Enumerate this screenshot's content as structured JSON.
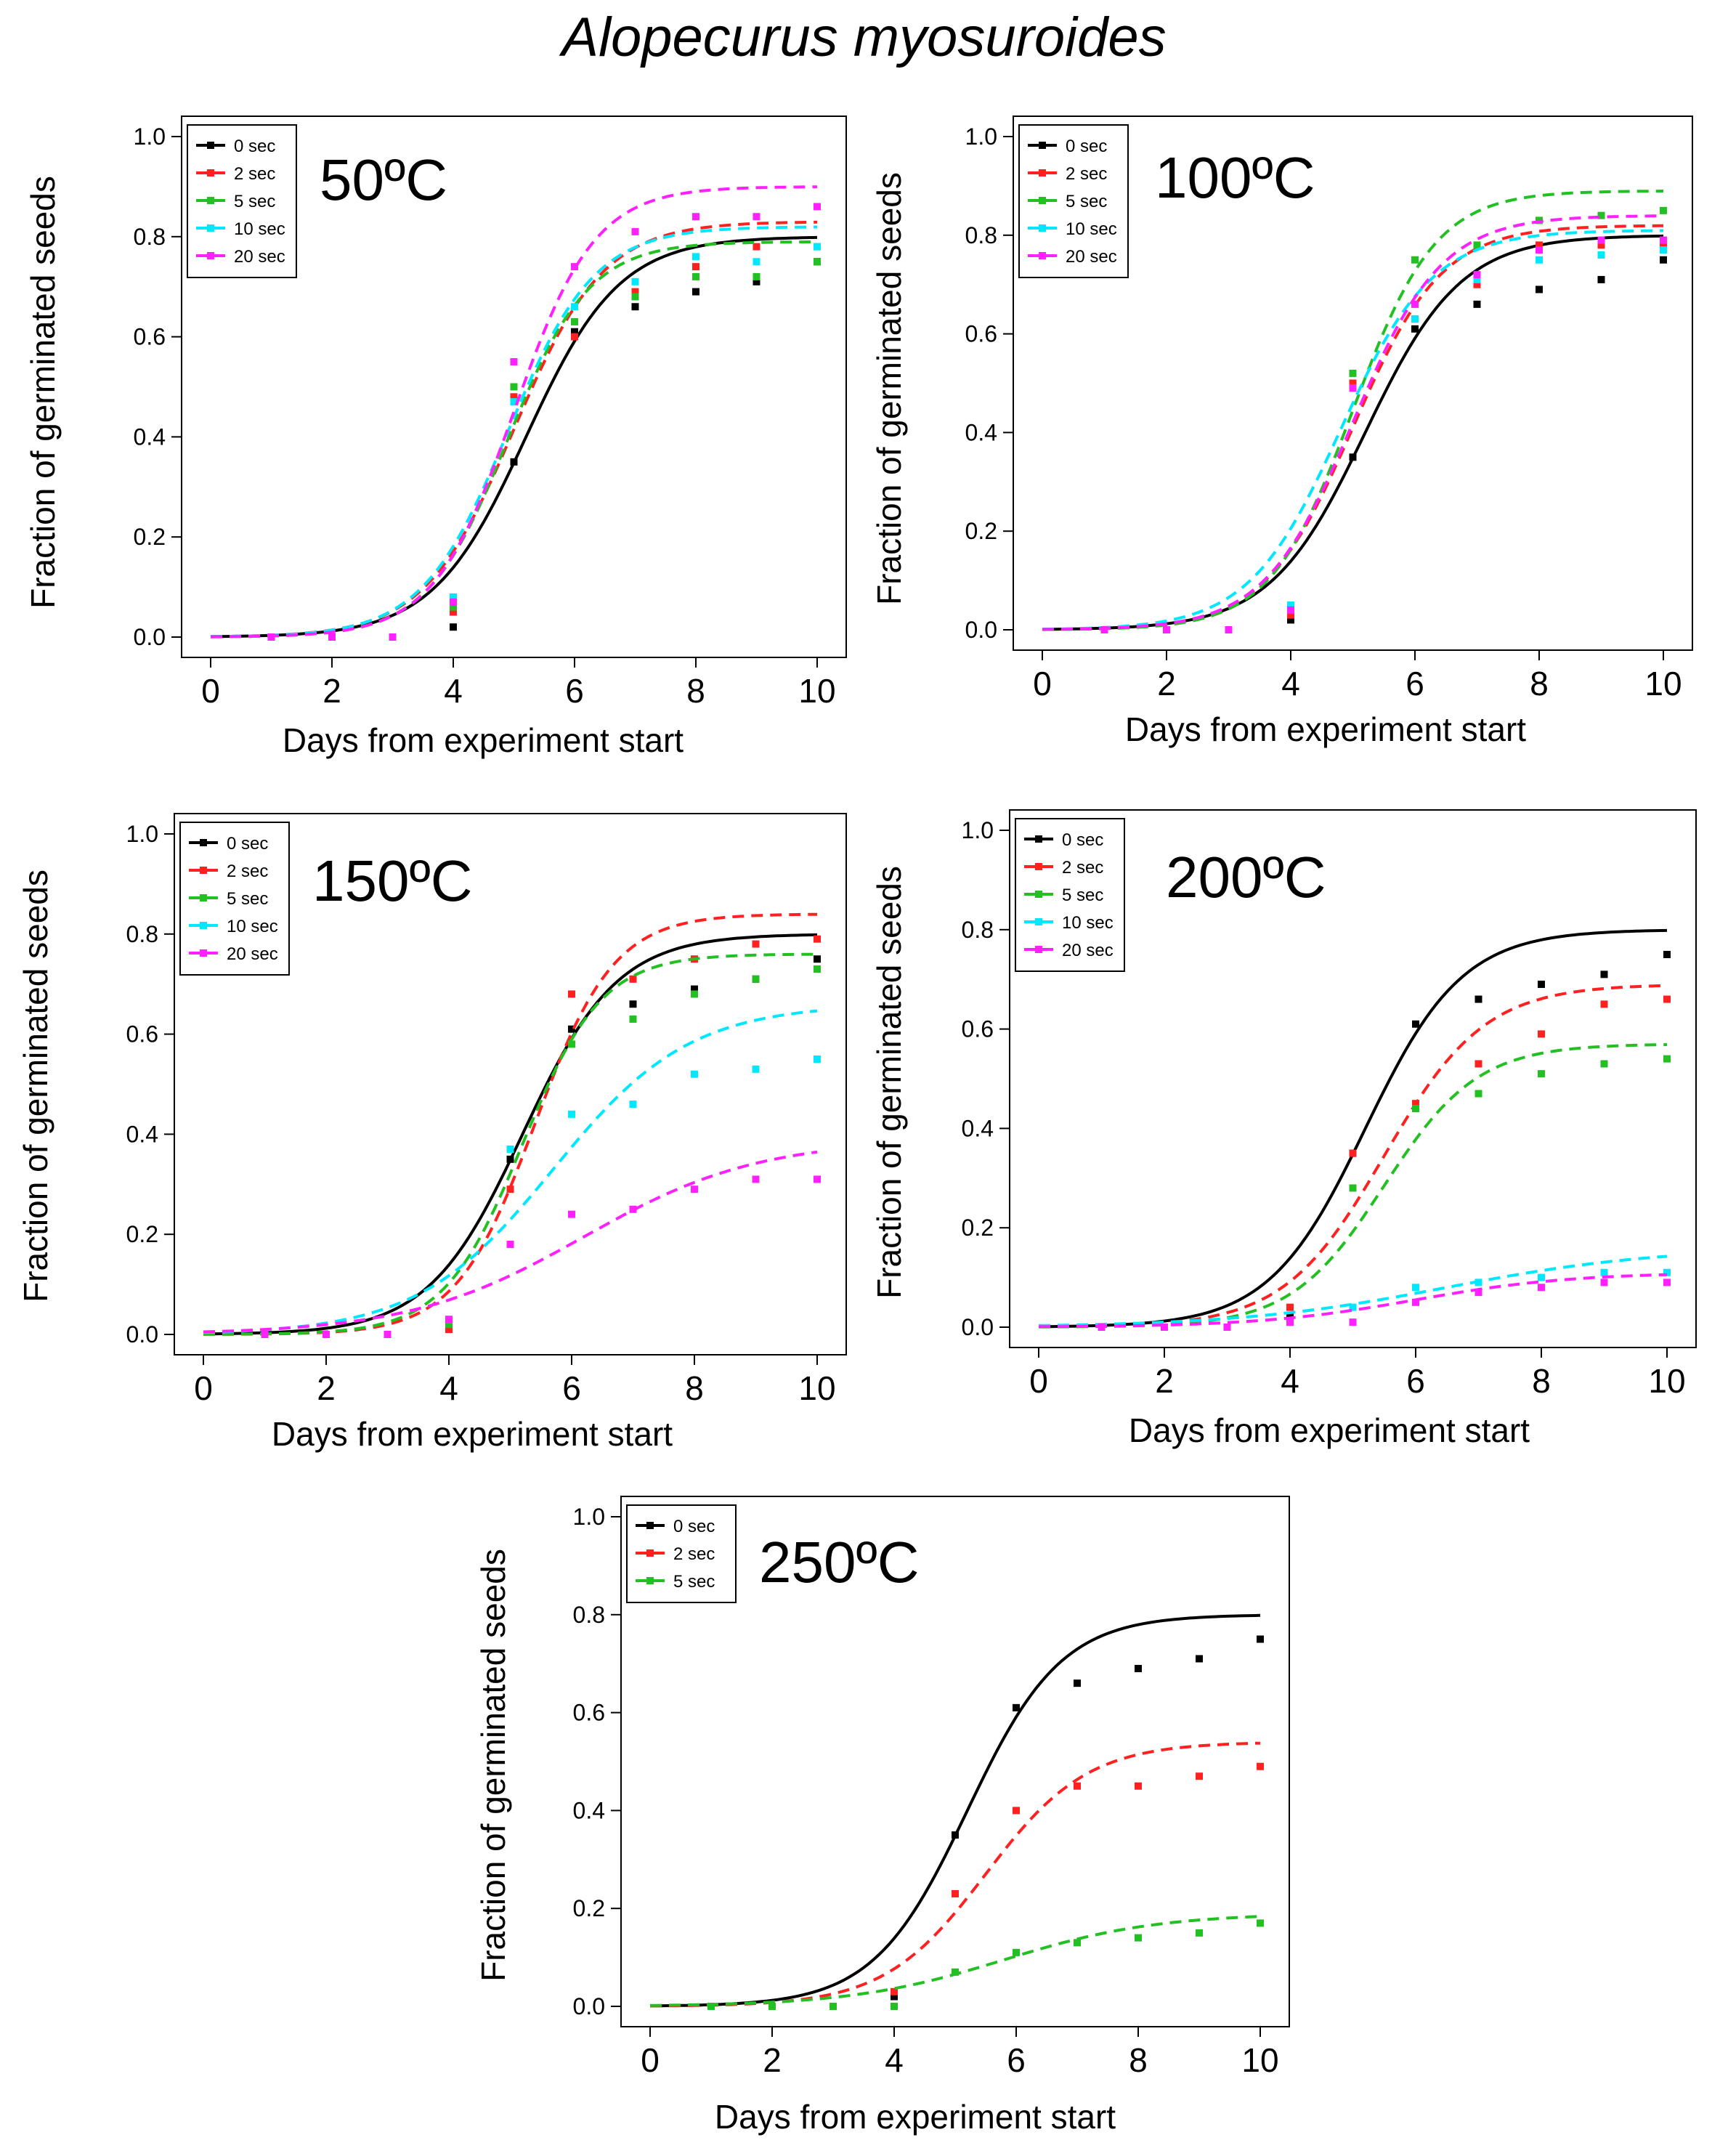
{
  "page_title": "Alopecurus myosuroides",
  "chart_data": [
    {
      "type": "line",
      "title": "50ºC",
      "xlabel": "Days from experiment start",
      "ylabel": "Fraction of germinated seeds",
      "xlim": [
        0,
        10
      ],
      "ylim": [
        0,
        1
      ],
      "xticks": [
        "0",
        "2",
        "4",
        "6",
        "8",
        "10"
      ],
      "yticks": [
        "0.0",
        "0.2",
        "0.4",
        "0.6",
        "0.8",
        "1.0"
      ],
      "x": [
        1,
        2,
        3,
        4,
        5,
        6,
        7,
        8,
        9,
        10
      ],
      "series": [
        {
          "name": "0 sec",
          "color": "#000000",
          "dash": false,
          "fit": {
            "K": 0.8,
            "r": 1.3,
            "t0": 5.2
          },
          "values": [
            0.0,
            0.0,
            0.0,
            0.02,
            0.35,
            0.61,
            0.66,
            0.69,
            0.71,
            0.75
          ]
        },
        {
          "name": "2 sec",
          "color": "#ff2020",
          "dash": true,
          "fit": {
            "K": 0.83,
            "r": 1.35,
            "t0": 5.0
          },
          "values": [
            0.0,
            0.0,
            0.0,
            0.05,
            0.48,
            0.6,
            0.69,
            0.74,
            0.78,
            0.78
          ]
        },
        {
          "name": "5 sec",
          "color": "#22c022",
          "dash": true,
          "fit": {
            "K": 0.79,
            "r": 1.5,
            "t0": 4.9
          },
          "values": [
            0.0,
            0.0,
            0.0,
            0.06,
            0.5,
            0.63,
            0.68,
            0.72,
            0.72,
            0.75
          ]
        },
        {
          "name": "10 sec",
          "color": "#00e8ff",
          "dash": true,
          "fit": {
            "K": 0.82,
            "r": 1.4,
            "t0": 4.9
          },
          "values": [
            0.0,
            0.0,
            0.0,
            0.08,
            0.47,
            0.66,
            0.71,
            0.76,
            0.75,
            0.78
          ]
        },
        {
          "name": "20 sec",
          "color": "#ff20ff",
          "dash": true,
          "fit": {
            "K": 0.9,
            "r": 1.5,
            "t0": 5.0
          },
          "values": [
            0.0,
            0.0,
            0.0,
            0.07,
            0.55,
            0.74,
            0.81,
            0.84,
            0.84,
            0.86
          ]
        }
      ]
    },
    {
      "type": "line",
      "title": "100ºC",
      "xlabel": "Days from experiment start",
      "ylabel": "Fraction of germinated seeds",
      "xlim": [
        0,
        10
      ],
      "ylim": [
        0,
        1
      ],
      "xticks": [
        "0",
        "2",
        "4",
        "6",
        "8",
        "10"
      ],
      "yticks": [
        "0.0",
        "0.2",
        "0.4",
        "0.6",
        "0.8",
        "1.0"
      ],
      "x": [
        1,
        2,
        3,
        4,
        5,
        6,
        7,
        8,
        9,
        10
      ],
      "series": [
        {
          "name": "0 sec",
          "color": "#000000",
          "dash": false,
          "fit": {
            "K": 0.8,
            "r": 1.3,
            "t0": 5.2
          },
          "values": [
            0.0,
            0.0,
            0.0,
            0.02,
            0.35,
            0.61,
            0.66,
            0.69,
            0.71,
            0.75
          ]
        },
        {
          "name": "2 sec",
          "color": "#ff2020",
          "dash": true,
          "fit": {
            "K": 0.82,
            "r": 1.4,
            "t0": 5.0
          },
          "values": [
            0.0,
            0.0,
            0.0,
            0.03,
            0.5,
            0.63,
            0.7,
            0.78,
            0.78,
            0.78
          ]
        },
        {
          "name": "5 sec",
          "color": "#22c022",
          "dash": true,
          "fit": {
            "K": 0.89,
            "r": 1.5,
            "t0": 5.0
          },
          "values": [
            0.0,
            0.0,
            0.0,
            0.04,
            0.52,
            0.75,
            0.78,
            0.83,
            0.84,
            0.85
          ]
        },
        {
          "name": "10 sec",
          "color": "#00e8ff",
          "dash": true,
          "fit": {
            "K": 0.81,
            "r": 1.35,
            "t0": 4.8
          },
          "values": [
            0.0,
            0.0,
            0.0,
            0.05,
            0.49,
            0.63,
            0.71,
            0.75,
            0.76,
            0.77
          ]
        },
        {
          "name": "20 sec",
          "color": "#ff20ff",
          "dash": true,
          "fit": {
            "K": 0.84,
            "r": 1.4,
            "t0": 5.0
          },
          "values": [
            0.0,
            0.0,
            0.0,
            0.04,
            0.49,
            0.66,
            0.72,
            0.77,
            0.79,
            0.79
          ]
        }
      ]
    },
    {
      "type": "line",
      "title": "150ºC",
      "xlabel": "Days from experiment start",
      "ylabel": "Fraction of germinated seeds",
      "xlim": [
        0,
        10
      ],
      "ylim": [
        0,
        1
      ],
      "xticks": [
        "0",
        "2",
        "4",
        "6",
        "8",
        "10"
      ],
      "yticks": [
        "0.0",
        "0.2",
        "0.4",
        "0.6",
        "0.8",
        "1.0"
      ],
      "x": [
        1,
        2,
        3,
        4,
        5,
        6,
        7,
        8,
        9,
        10
      ],
      "series": [
        {
          "name": "0 sec",
          "color": "#000000",
          "dash": false,
          "fit": {
            "K": 0.8,
            "r": 1.3,
            "t0": 5.2
          },
          "values": [
            0.0,
            0.0,
            0.0,
            0.02,
            0.35,
            0.61,
            0.66,
            0.69,
            0.71,
            0.75
          ]
        },
        {
          "name": "2 sec",
          "color": "#ff2020",
          "dash": true,
          "fit": {
            "K": 0.84,
            "r": 1.55,
            "t0": 5.4
          },
          "values": [
            0.0,
            0.0,
            0.0,
            0.01,
            0.29,
            0.68,
            0.71,
            0.75,
            0.78,
            0.79
          ]
        },
        {
          "name": "5 sec",
          "color": "#22c022",
          "dash": true,
          "fit": {
            "K": 0.76,
            "r": 1.55,
            "t0": 5.2
          },
          "values": [
            0.0,
            0.0,
            0.0,
            0.02,
            0.37,
            0.58,
            0.63,
            0.68,
            0.71,
            0.73
          ]
        },
        {
          "name": "10 sec",
          "color": "#00e8ff",
          "dash": true,
          "fit": {
            "K": 0.66,
            "r": 0.9,
            "t0": 5.7
          },
          "values": [
            0.0,
            0.0,
            0.0,
            0.03,
            0.37,
            0.44,
            0.46,
            0.52,
            0.53,
            0.55
          ]
        },
        {
          "name": "20 sec",
          "color": "#ff20ff",
          "dash": true,
          "fit": {
            "K": 0.39,
            "r": 0.7,
            "t0": 6.2
          },
          "values": [
            0.0,
            0.0,
            0.0,
            0.03,
            0.18,
            0.24,
            0.25,
            0.29,
            0.31,
            0.31
          ]
        }
      ]
    },
    {
      "type": "line",
      "title": "200ºC",
      "xlabel": "Days from experiment start",
      "ylabel": "Fraction of germinated seeds",
      "xlim": [
        0,
        10
      ],
      "ylim": [
        0,
        1
      ],
      "xticks": [
        "0",
        "2",
        "4",
        "6",
        "8",
        "10"
      ],
      "yticks": [
        "0.0",
        "0.2",
        "0.4",
        "0.6",
        "0.8",
        "1.0"
      ],
      "x": [
        1,
        2,
        3,
        4,
        5,
        6,
        7,
        8,
        9,
        10
      ],
      "series": [
        {
          "name": "0 sec",
          "color": "#000000",
          "dash": false,
          "fit": {
            "K": 0.8,
            "r": 1.3,
            "t0": 5.2
          },
          "values": [
            0.0,
            0.0,
            0.0,
            0.02,
            0.35,
            0.61,
            0.66,
            0.69,
            0.71,
            0.75
          ]
        },
        {
          "name": "2 sec",
          "color": "#ff2020",
          "dash": true,
          "fit": {
            "K": 0.69,
            "r": 1.25,
            "t0": 5.5
          },
          "values": [
            0.0,
            0.0,
            0.0,
            0.04,
            0.35,
            0.45,
            0.53,
            0.59,
            0.65,
            0.66
          ]
        },
        {
          "name": "5 sec",
          "color": "#22c022",
          "dash": true,
          "fit": {
            "K": 0.57,
            "r": 1.35,
            "t0": 5.5
          },
          "values": [
            0.0,
            0.0,
            0.0,
            0.01,
            0.28,
            0.44,
            0.47,
            0.51,
            0.53,
            0.54
          ]
        },
        {
          "name": "10 sec",
          "color": "#00e8ff",
          "dash": true,
          "fit": {
            "K": 0.16,
            "r": 0.6,
            "t0": 6.5
          },
          "values": [
            0.0,
            0.0,
            0.0,
            0.01,
            0.04,
            0.08,
            0.09,
            0.1,
            0.11,
            0.11
          ]
        },
        {
          "name": "20 sec",
          "color": "#ff20ff",
          "dash": true,
          "fit": {
            "K": 0.11,
            "r": 0.8,
            "t0": 6.0
          },
          "values": [
            0.0,
            0.0,
            0.0,
            0.01,
            0.01,
            0.05,
            0.07,
            0.08,
            0.09,
            0.09
          ]
        }
      ]
    },
    {
      "type": "line",
      "title": "250ºC",
      "xlabel": "Days from experiment start",
      "ylabel": "Fraction of germinated seeds",
      "xlim": [
        0,
        10
      ],
      "ylim": [
        0,
        1
      ],
      "xticks": [
        "0",
        "2",
        "4",
        "6",
        "8",
        "10"
      ],
      "yticks": [
        "0.0",
        "0.2",
        "0.4",
        "0.6",
        "0.8",
        "1.0"
      ],
      "x": [
        1,
        2,
        3,
        4,
        5,
        6,
        7,
        8,
        9,
        10
      ],
      "series": [
        {
          "name": "0 sec",
          "color": "#000000",
          "dash": false,
          "fit": {
            "K": 0.8,
            "r": 1.3,
            "t0": 5.2
          },
          "values": [
            0.0,
            0.0,
            0.0,
            0.02,
            0.35,
            0.61,
            0.66,
            0.69,
            0.71,
            0.75
          ]
        },
        {
          "name": "2 sec",
          "color": "#ff2020",
          "dash": true,
          "fit": {
            "K": 0.54,
            "r": 1.2,
            "t0": 5.5
          },
          "values": [
            0.0,
            0.0,
            0.0,
            0.03,
            0.23,
            0.4,
            0.45,
            0.45,
            0.47,
            0.49
          ]
        },
        {
          "name": "5 sec",
          "color": "#22c022",
          "dash": true,
          "fit": {
            "K": 0.19,
            "r": 0.8,
            "t0": 5.8
          },
          "values": [
            0.0,
            0.0,
            0.0,
            0.0,
            0.07,
            0.11,
            0.13,
            0.14,
            0.15,
            0.17
          ]
        }
      ]
    }
  ]
}
